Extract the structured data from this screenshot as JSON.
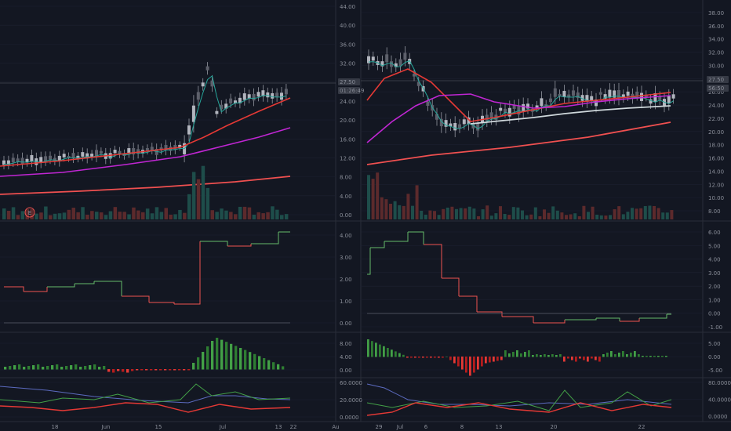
{
  "colors": {
    "background": "#131722",
    "grid": "#1c2030",
    "separator": "#2a2e39",
    "bull": "#26a69a",
    "bear": "#ef5350",
    "candle": "#9598a1",
    "ema_teal": "#26a69a",
    "ma_red": "#e53935",
    "ma_magenta": "#c026d3",
    "ma_long": "#f05050",
    "ma_gray": "#cfd8dc",
    "osc_blue": "#5c6bc0",
    "osc_green": "#43a047",
    "osc_red": "#e53935",
    "step_green": "#66bb6a",
    "step_red": "#ef5350"
  },
  "left_chart": {
    "price_axis": [
      "44.00",
      "40.00",
      "36.00",
      "32.00",
      "28.00",
      "24.00",
      "20.00",
      "16.00",
      "12.00",
      "8.00",
      "4.00",
      "0.00"
    ],
    "price_tags": [
      "27.50",
      "01:26:49"
    ],
    "earnings_marker": "E",
    "step_axis": [
      "4.00",
      "3.00",
      "2.00",
      "1.00",
      "0.00"
    ],
    "hist_axis": [
      "8.00",
      "4.00",
      "0.00"
    ],
    "osc_axis": [
      "60.0000",
      "20.0000",
      "0.0000"
    ],
    "time_axis": [
      "18",
      "Jun",
      "15",
      "Jul",
      "13",
      "22",
      "Au"
    ]
  },
  "right_chart": {
    "price_axis": [
      "38.00",
      "36.00",
      "34.00",
      "32.00",
      "30.00",
      "28.00",
      "26.00",
      "24.00",
      "22.00",
      "20.00",
      "18.00",
      "16.00",
      "14.00",
      "12.00",
      "10.00",
      "8.00"
    ],
    "price_tags": [
      "27.50",
      "56:50"
    ],
    "step_axis": [
      "6.00",
      "5.00",
      "4.00",
      "3.00",
      "2.00",
      "1.00",
      "0.00",
      "-1.00"
    ],
    "hist_axis": [
      "5.00",
      "0.00",
      "-5.00"
    ],
    "osc_axis": [
      "80.0000",
      "40.0000",
      "0.0000"
    ],
    "time_axis": [
      "29",
      "Jul",
      "6",
      "8",
      "13",
      "20",
      "22"
    ]
  }
}
